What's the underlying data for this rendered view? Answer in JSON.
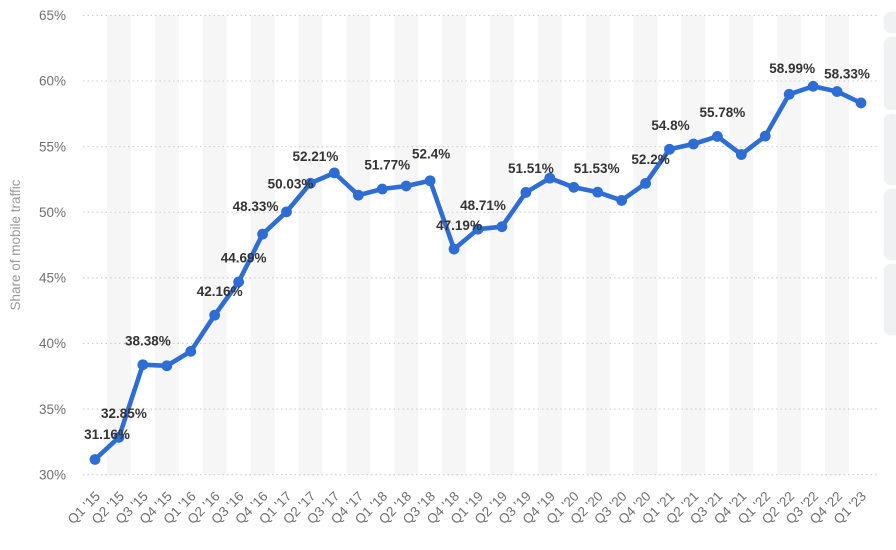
{
  "chart_data": {
    "type": "line",
    "title": "",
    "xlabel": "",
    "ylabel": "Share of mobile traffic",
    "ylim": [
      30,
      65
    ],
    "ytick_step": 5,
    "y_tick_labels": [
      "30%",
      "35%",
      "40%",
      "45%",
      "50%",
      "55%",
      "60%",
      "65%"
    ],
    "grid": "dotted-horizontal",
    "legend_position": "none",
    "line_color": "#2e6dd3",
    "categories": [
      "Q1 '15",
      "Q2 '15",
      "Q3 '15",
      "Q4 '15",
      "Q1 '16",
      "Q2 '16",
      "Q3 '16",
      "Q4 '16",
      "Q1 '17",
      "Q2 '17",
      "Q3 '17",
      "Q4 '17",
      "Q1 '18",
      "Q2 '18",
      "Q3 '18",
      "Q4 '18",
      "Q1 '19",
      "Q2 '19",
      "Q3 '19",
      "Q4 '19",
      "Q1 '20",
      "Q2 '20",
      "Q3 '20",
      "Q4 '20",
      "Q1 '21",
      "Q2 '21",
      "Q3 '21",
      "Q4 '21",
      "Q1 '22",
      "Q2 '22",
      "Q3 '22",
      "Q4 '22",
      "Q1 '23"
    ],
    "values": [
      31.16,
      32.85,
      38.38,
      38.3,
      39.4,
      42.16,
      44.69,
      48.33,
      50.03,
      52.21,
      53.0,
      51.3,
      51.77,
      52.0,
      52.4,
      47.19,
      48.71,
      48.9,
      51.51,
      52.6,
      51.9,
      51.53,
      50.9,
      52.2,
      54.8,
      55.2,
      55.78,
      54.4,
      55.8,
      58.99,
      59.6,
      59.2,
      58.33
    ],
    "point_labels": [
      {
        "index": 0,
        "text": "31.16%"
      },
      {
        "index": 1,
        "text": "32.85%"
      },
      {
        "index": 2,
        "text": "38.38%"
      },
      {
        "index": 5,
        "text": "42.16%"
      },
      {
        "index": 6,
        "text": "44.69%"
      },
      {
        "index": 7,
        "text": "48.33%"
      },
      {
        "index": 8,
        "text": "50.03%"
      },
      {
        "index": 9,
        "text": "52.21%"
      },
      {
        "index": 12,
        "text": "51.77%"
      },
      {
        "index": 14,
        "text": "52.4%"
      },
      {
        "index": 15,
        "text": "47.19%"
      },
      {
        "index": 16,
        "text": "48.71%"
      },
      {
        "index": 18,
        "text": "51.51%"
      },
      {
        "index": 21,
        "text": "51.53%"
      },
      {
        "index": 23,
        "text": "52.2%"
      },
      {
        "index": 24,
        "text": "54.8%"
      },
      {
        "index": 26,
        "text": "55.78%"
      },
      {
        "index": 29,
        "text": "58.99%"
      },
      {
        "index": 32,
        "text": "58.33%"
      }
    ]
  },
  "colors": {
    "line": "#2e6dd3",
    "band": "#f6f6f7",
    "gridline": "#cccccc",
    "axis_tick_text": "#6f6f6f",
    "axis_title_text": "#9a9a9a",
    "data_label_text": "#333333",
    "background": "#ffffff",
    "side_button": "#f0f1f3"
  },
  "side_toolbar": {
    "button_count": 5
  }
}
